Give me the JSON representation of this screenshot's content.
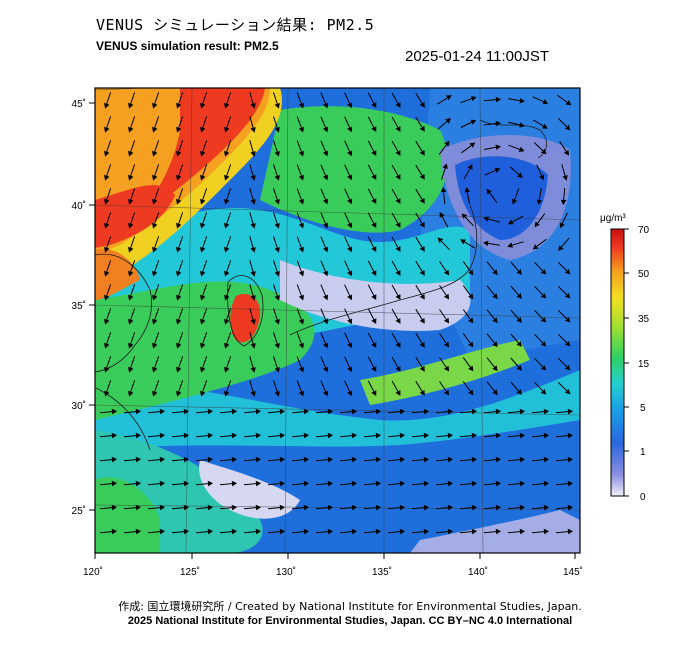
{
  "header": {
    "title_jp": "VENUS シミュレーション結果: PM2.5",
    "title_en": "VENUS simulation result: PM2.5",
    "timestamp": "2025-01-24 11:00JST"
  },
  "map": {
    "lon_labels": [
      "120˚",
      "125˚",
      "130˚",
      "135˚",
      "140˚",
      "145˚"
    ],
    "lat_labels": [
      "45˚",
      "40˚",
      "35˚",
      "30˚",
      "25˚"
    ]
  },
  "colorbar": {
    "unit": "μg/m³",
    "ticks": [
      "70",
      "50",
      "35",
      "15",
      "5",
      "1",
      "0"
    ],
    "colors": [
      "#e6e6f5",
      "#7f8cd9",
      "#1f5fdb",
      "#1aa0e8",
      "#22d3d3",
      "#3ad25a",
      "#a8e030",
      "#f0e020",
      "#f5a020",
      "#ee3020",
      "#cc1010"
    ]
  },
  "footer": {
    "credit_line1": "作成: 国立環境研究所 / Created by National Institute for Environmental Studies, Japan.",
    "credit_line2": "2025 National Institute for Environmental Studies, Japan. CC BY–NC 4.0 International"
  }
}
